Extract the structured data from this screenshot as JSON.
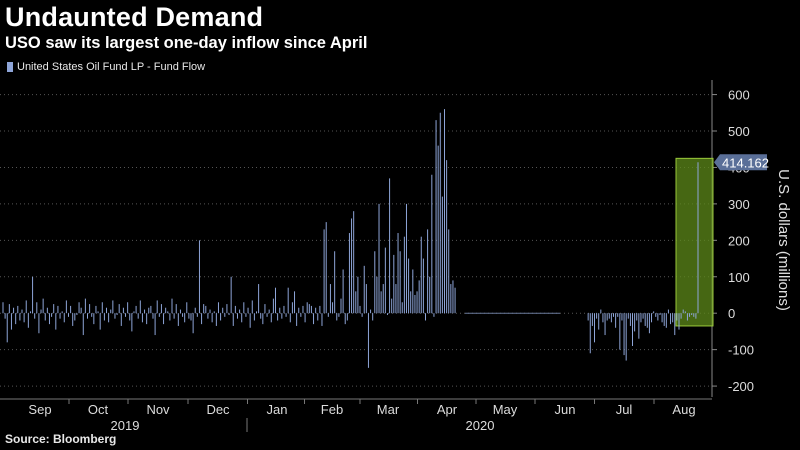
{
  "title": "Undaunted Demand",
  "subtitle": "USO saw its largest one-day inflow since April",
  "source": "Source: Bloomberg",
  "colors": {
    "bar": "#8ea5d8",
    "highlight": "#5d8a1a",
    "highlight_border": "#9ac93a",
    "callout": "#5a6f98"
  },
  "chart_data": {
    "type": "bar",
    "series": [
      {
        "name": "United States Oil Fund LP - Fund Flow"
      }
    ],
    "ylabel": "U.S. dollars (millions)",
    "ylim": [
      -230,
      640
    ],
    "yticks": [
      600,
      500,
      400,
      300,
      200,
      100,
      0,
      -100,
      -200
    ],
    "month_labels": [
      "Sep",
      "Oct",
      "Nov",
      "Dec",
      "Jan",
      "Feb",
      "Mar",
      "Apr",
      "May",
      "Jun",
      "Jul",
      "Aug"
    ],
    "year_labels": [
      "2019",
      "2020"
    ],
    "last_value_label": "414.162",
    "highlight_range": [
      -35,
      425
    ],
    "values": [
      30,
      -15,
      -80,
      25,
      -45,
      15,
      -30,
      20,
      -20,
      10,
      -25,
      35,
      -40,
      5,
      100,
      -15,
      30,
      -55,
      10,
      40,
      -20,
      15,
      -30,
      -10,
      25,
      -45,
      20,
      -15,
      5,
      -25,
      35,
      -10,
      20,
      -35,
      -20,
      -5,
      30,
      15,
      -60,
      40,
      -15,
      25,
      -10,
      -30,
      20,
      5,
      -45,
      30,
      -20,
      15,
      -25,
      10,
      35,
      -15,
      -5,
      25,
      -35,
      15,
      -10,
      30,
      -20,
      -50,
      5,
      20,
      -15,
      35,
      -25,
      10,
      -30,
      15,
      20,
      -15,
      -60,
      35,
      -10,
      25,
      -30,
      15,
      5,
      -20,
      40,
      -15,
      25,
      -35,
      10,
      -10,
      -25,
      30,
      -15,
      -20,
      -55,
      15,
      -10,
      200,
      -30,
      25,
      20,
      -15,
      10,
      -25,
      5,
      -35,
      30,
      -20,
      15,
      -10,
      25,
      -5,
      100,
      -35,
      20,
      -15,
      10,
      -25,
      30,
      -10,
      15,
      -40,
      35,
      -20,
      5,
      80,
      -15,
      -30,
      25,
      -10,
      10,
      -25,
      40,
      70,
      -20,
      15,
      -15,
      20,
      -10,
      70,
      -25,
      30,
      60,
      -35,
      15,
      -10,
      20,
      -25,
      30,
      25,
      20,
      -30,
      15,
      -20,
      20,
      -35,
      230,
      250,
      -10,
      80,
      30,
      170,
      -20,
      -10,
      40,
      120,
      -30,
      -20,
      220,
      260,
      280,
      60,
      100,
      20,
      -10,
      130,
      80,
      -150,
      10,
      -20,
      170,
      100,
      300,
      60,
      80,
      180,
      -5,
      370,
      40,
      160,
      80,
      220,
      170,
      30,
      210,
      300,
      150,
      60,
      120,
      50,
      60,
      90,
      210,
      150,
      -20,
      230,
      100,
      380,
      -10,
      530,
      460,
      550,
      320,
      560,
      420,
      230,
      80,
      90,
      70,
      0,
      0,
      0,
      0,
      0,
      0,
      0,
      0,
      0,
      0,
      0,
      0,
      0,
      0,
      0,
      0,
      0,
      0,
      0,
      0,
      0,
      0,
      0,
      0,
      0,
      0,
      0,
      0,
      0,
      0,
      0,
      0,
      0,
      0,
      0,
      0,
      0,
      0,
      0,
      0,
      0,
      0,
      0,
      0,
      0,
      0,
      0,
      0,
      0,
      0,
      0,
      0,
      0,
      0,
      0,
      0,
      0,
      0,
      0,
      0,
      0,
      0,
      -20,
      -110,
      -35,
      -80,
      -15,
      -45,
      10,
      -25,
      -60,
      -20,
      -15,
      -25,
      -10,
      -40,
      -10,
      -100,
      -20,
      -115,
      -130,
      -15,
      -35,
      -90,
      -50,
      -20,
      -70,
      -25,
      -15,
      -35,
      -40,
      -55,
      -25,
      5,
      -10,
      -20,
      -5,
      -25,
      -35,
      -40,
      10,
      -30,
      -25,
      -60,
      -20,
      -45,
      -15,
      10,
      5,
      -20,
      -10,
      -5,
      -10,
      -15,
      414.162
    ]
  }
}
